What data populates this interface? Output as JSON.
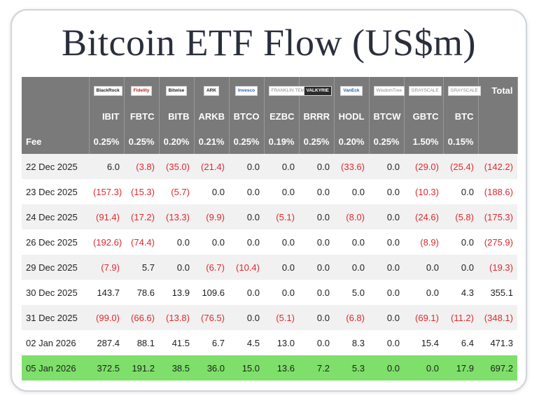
{
  "title": "Bitcoin ETF Flow (US$m)",
  "issuers": [
    {
      "label": "BlackRock",
      "style": "plain"
    },
    {
      "label": "Fidelity",
      "style": "red"
    },
    {
      "label": "Bitwise",
      "style": "plain"
    },
    {
      "label": "ARK",
      "style": "plain"
    },
    {
      "label": "Invesco",
      "style": "blue"
    },
    {
      "label": "FRANKLIN TEMPLETON",
      "style": "grey"
    },
    {
      "label": "VALKYRIE",
      "style": "dark"
    },
    {
      "label": "VanEck",
      "style": "blue"
    },
    {
      "label": "WisdomTree",
      "style": "grey"
    },
    {
      "label": "GRAYSCALE",
      "style": "grey"
    },
    {
      "label": "GRAYSCALE",
      "style": "grey"
    }
  ],
  "total_label": "Total",
  "tickers": [
    "IBIT",
    "FBTC",
    "BITB",
    "ARKB",
    "BTCO",
    "EZBC",
    "BRRR",
    "HODL",
    "BTCW",
    "GBTC",
    "BTC"
  ],
  "fee_label": "Fee",
  "fees": [
    "0.25%",
    "0.25%",
    "0.20%",
    "0.21%",
    "0.25%",
    "0.19%",
    "0.25%",
    "0.20%",
    "0.25%",
    "1.50%",
    "0.15%"
  ],
  "rows": [
    {
      "date": "22 Dec 2025",
      "values": [
        "6.0",
        "(3.8)",
        "(35.0)",
        "(21.4)",
        "0.0",
        "0.0",
        "0.0",
        "(33.6)",
        "0.0",
        "(29.0)",
        "(25.4)"
      ],
      "total": "(142.2)"
    },
    {
      "date": "23 Dec 2025",
      "values": [
        "(157.3)",
        "(15.3)",
        "(5.7)",
        "0.0",
        "0.0",
        "0.0",
        "0.0",
        "0.0",
        "0.0",
        "(10.3)",
        "0.0"
      ],
      "total": "(188.6)"
    },
    {
      "date": "24 Dec 2025",
      "values": [
        "(91.4)",
        "(17.2)",
        "(13.3)",
        "(9.9)",
        "0.0",
        "(5.1)",
        "0.0",
        "(8.0)",
        "0.0",
        "(24.6)",
        "(5.8)"
      ],
      "total": "(175.3)"
    },
    {
      "date": "26 Dec 2025",
      "values": [
        "(192.6)",
        "(74.4)",
        "0.0",
        "0.0",
        "0.0",
        "0.0",
        "0.0",
        "0.0",
        "0.0",
        "(8.9)",
        "0.0"
      ],
      "total": "(275.9)"
    },
    {
      "date": "29 Dec 2025",
      "values": [
        "(7.9)",
        "5.7",
        "0.0",
        "(6.7)",
        "(10.4)",
        "0.0",
        "0.0",
        "0.0",
        "0.0",
        "0.0",
        "0.0"
      ],
      "total": "(19.3)"
    },
    {
      "date": "30 Dec 2025",
      "values": [
        "143.7",
        "78.6",
        "13.9",
        "109.6",
        "0.0",
        "0.0",
        "0.0",
        "5.0",
        "0.0",
        "0.0",
        "4.3"
      ],
      "total": "355.1"
    },
    {
      "date": "31 Dec 2025",
      "values": [
        "(99.0)",
        "(66.6)",
        "(13.8)",
        "(76.5)",
        "0.0",
        "(5.1)",
        "0.0",
        "(6.8)",
        "0.0",
        "(69.1)",
        "(11.2)"
      ],
      "total": "(348.1)"
    },
    {
      "date": "02 Jan 2026",
      "values": [
        "287.4",
        "88.1",
        "41.5",
        "6.7",
        "4.5",
        "13.0",
        "0.0",
        "8.3",
        "0.0",
        "15.4",
        "6.4"
      ],
      "total": "471.3"
    },
    {
      "date": "05 Jan 2026",
      "values": [
        "372.5",
        "191.2",
        "38.5",
        "36.0",
        "15.0",
        "13.6",
        "7.2",
        "5.3",
        "0.0",
        "0.0",
        "17.9"
      ],
      "total": "697.2"
    }
  ],
  "highlight_row": 8,
  "colors": {
    "header_bg": "#7a7a7a",
    "negative": "#e0282f",
    "highlight": "#7ee06a"
  }
}
